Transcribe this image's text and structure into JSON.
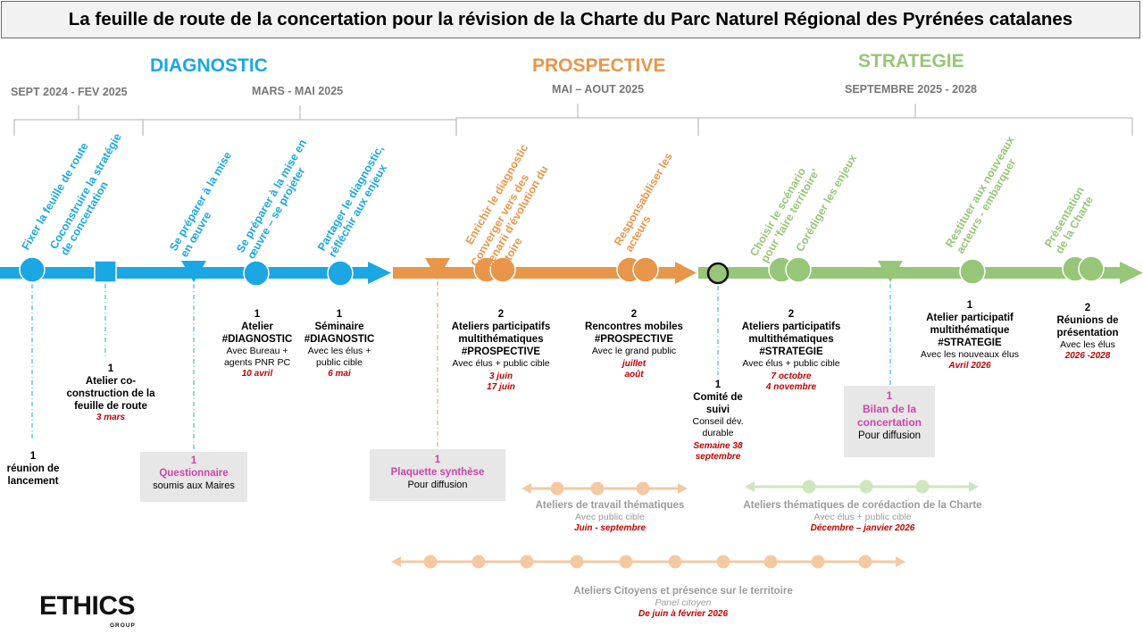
{
  "title": "La feuille de route de la concertation pour la révision de la Charte du Parc Naturel Régional des Pyrénées catalanes",
  "colors": {
    "blue": "#1aa7e3",
    "orange": "#e8964a",
    "green": "#97c678",
    "light_orange": "#f4c9a2",
    "light_green": "#cfe5bf",
    "pink": "#cc44aa",
    "red": "#c00000",
    "grey_text": "#777777"
  },
  "phases": {
    "diagnostic": {
      "label": "DIAGNOSTIC",
      "periods": [
        "SEPT 2024 - FEV 2025",
        "MARS - MAI 2025"
      ]
    },
    "prospective": {
      "label": "PROSPECTIVE",
      "periods": [
        "MAI – AOUT 2025"
      ]
    },
    "strategie": {
      "label": "STRATEGIE",
      "periods": [
        "SEPTEMBRE 2025 - 2028"
      ]
    }
  },
  "objectives": [
    [
      "Fixer la feuille de route"
    ],
    [
      "Coconstruire la stratégie",
      "de concertation"
    ],
    [
      "Se préparer à la mise",
      "en œuvre"
    ],
    [
      "Se préparer à la mise en",
      "œuvre – se projeter"
    ],
    [
      "Partager le diagnostic,",
      "réfléchir aux enjeux"
    ],
    [
      "Enrichir le diagnostic"
    ],
    [
      "Converger vers des",
      "scenarii d'évolution du",
      "territoire"
    ],
    [
      "Responsabiliser les",
      "acteurs"
    ],
    [
      "Choisir le scénario",
      "pour 'faire territoire'"
    ],
    [
      "Corédiger les enjeux"
    ],
    [
      "Restituer aux nouveaux",
      "acteurs - embarquer"
    ],
    [
      "Présentation",
      "de la Charte"
    ]
  ],
  "events": {
    "lancement": {
      "num": "1",
      "lines": [
        "réunion de",
        "lancement"
      ]
    },
    "atelier_coconstruction": {
      "num": "1",
      "lines": [
        "Atelier co-",
        "construction de la",
        "feuille de route"
      ],
      "date": "3 mars"
    },
    "questionnaire": {
      "num": "1",
      "title": "Questionnaire",
      "sub": "soumis aux Maires"
    },
    "atelier_diagnostic": {
      "num": "1",
      "lines": [
        "Atelier",
        "#DIAGNOSTIC"
      ],
      "sub": [
        "Avec Bureau +",
        "agents PNR PC"
      ],
      "date": "10 avril"
    },
    "seminaire_diagnostic": {
      "num": "1",
      "lines": [
        "Séminaire",
        "#DIAGNOSTIC"
      ],
      "sub": [
        "Avec les élus  +",
        "public cible"
      ],
      "date": "6 mai"
    },
    "plaquette": {
      "num": "1",
      "title": "Plaquette synthèse",
      "sub": "Pour diffusion"
    },
    "ateliers_prospective": {
      "num": "2",
      "lines": [
        "Ateliers participatifs",
        "multithématiques",
        "#PROSPECTIVE"
      ],
      "sub": [
        "Avec élus + public cible"
      ],
      "dates": [
        "3 juin",
        "17 juin"
      ]
    },
    "rencontres_mobiles": {
      "num": "2",
      "lines": [
        "Rencontres mobiles",
        "#PROSPECTIVE"
      ],
      "sub": [
        "Avec le grand public"
      ],
      "dates": [
        "juillet",
        "août"
      ]
    },
    "comite_suivi": {
      "num": "1",
      "lines": [
        "Comité de",
        "suivi"
      ],
      "sub": [
        "Conseil dév.",
        "durable"
      ],
      "dates": [
        "Semaine 38",
        "septembre"
      ]
    },
    "ateliers_strategie": {
      "num": "2",
      "lines": [
        "Ateliers participatifs",
        "multithématiques",
        "#STRATEGIE"
      ],
      "sub": [
        "Avec élus + public cible"
      ],
      "dates": [
        "7 octobre",
        "4 novembre"
      ]
    },
    "bilan": {
      "num": "1",
      "title_lines": [
        "Bilan de la",
        "concertation"
      ],
      "sub": "Pour diffusion"
    },
    "atelier_strategie_nouveaux": {
      "num": "1",
      "lines": [
        "Atelier participatif",
        "multithématique",
        "#STRATEGIE"
      ],
      "sub": [
        "Avec les nouveaux élus"
      ],
      "date": "Avril 2026"
    },
    "reunions_presentation": {
      "num": "2",
      "lines": [
        "Réunions de",
        "présentation"
      ],
      "sub": [
        "Avec les élus"
      ],
      "date": "2026 -2028"
    }
  },
  "tracks": {
    "travail_thematique": {
      "title": "Ateliers de travail thématiques",
      "sub": "Avec public cible",
      "date": "Juin - septembre"
    },
    "coredaction": {
      "title": "Ateliers thématiques de corédaction de la Charte",
      "sub": "Avec élus + public cible",
      "date": "Décembre – janvier 2026"
    },
    "citoyens": {
      "title": "Ateliers Citoyens et présence sur le territoire",
      "sub": "Panel citoyen",
      "date": "De juin à février 2026"
    }
  },
  "logo": {
    "name": "ETHICS",
    "sub": "GROUP"
  }
}
